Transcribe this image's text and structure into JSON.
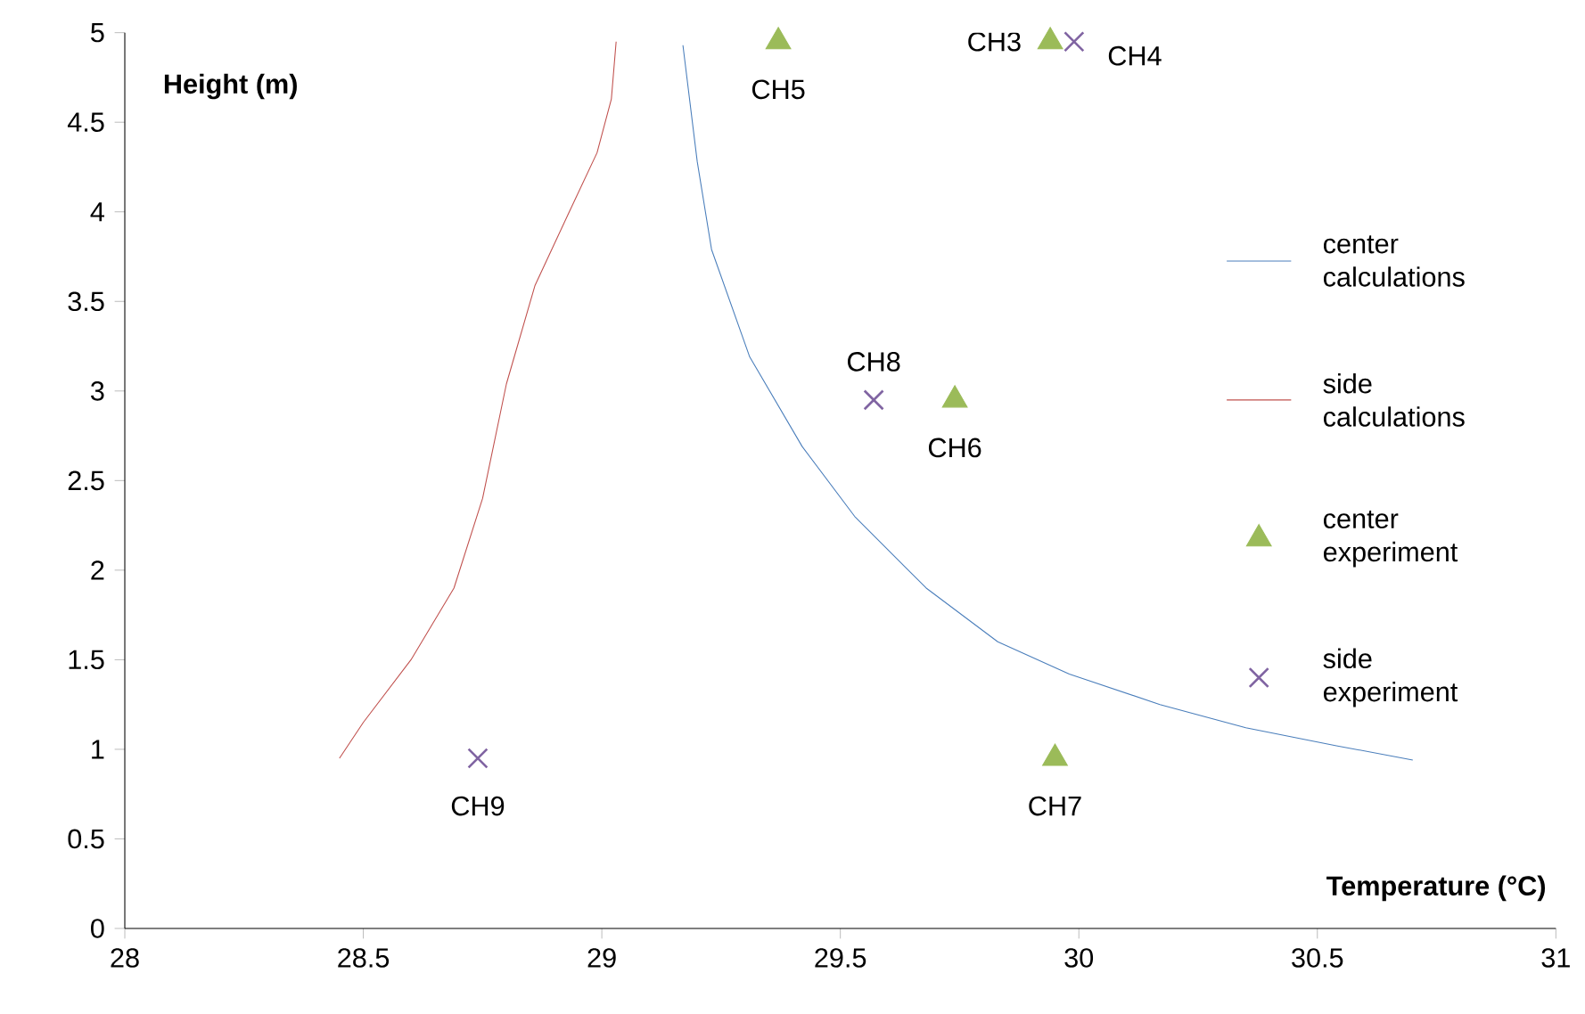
{
  "chart_data": {
    "type": "line",
    "xlabel": "Temperature (°C)",
    "ylabel": "Height (m)",
    "xlim": [
      28,
      31
    ],
    "ylim": [
      0,
      5
    ],
    "xticks": [
      28,
      28.5,
      29,
      29.5,
      30,
      30.5,
      31
    ],
    "yticks": [
      0,
      0.5,
      1,
      1.5,
      2,
      2.5,
      3,
      3.5,
      4,
      4.5,
      5
    ],
    "legend": "right",
    "series": [
      {
        "name": "center calculations",
        "type": "line",
        "marker": "none",
        "color": "#4a7ebb",
        "x": [
          29.17,
          29.2,
          29.23,
          29.31,
          29.42,
          29.53,
          29.68,
          29.83,
          29.98,
          30.17,
          30.35,
          30.54,
          30.7
        ],
        "values": [
          4.93,
          4.28,
          3.79,
          3.19,
          2.69,
          2.3,
          1.9,
          1.6,
          1.42,
          1.25,
          1.12,
          1.02,
          0.94
        ]
      },
      {
        "name": "side calculations",
        "type": "line",
        "marker": "none",
        "color": "#c0504d",
        "x": [
          28.45,
          28.5,
          28.6,
          28.69,
          28.75,
          28.8,
          28.86,
          28.93,
          28.99,
          29.02,
          29.03
        ],
        "values": [
          0.95,
          1.15,
          1.5,
          1.9,
          2.4,
          3.04,
          3.59,
          3.99,
          4.33,
          4.63,
          4.95
        ]
      },
      {
        "name": "center experiment",
        "type": "scatter",
        "marker": "triangle",
        "color": "#9bbb59",
        "x": [
          29.37,
          29.94,
          29.74,
          29.95
        ],
        "values": [
          4.95,
          4.95,
          2.95,
          0.95
        ]
      },
      {
        "name": "side experiment",
        "type": "scatter",
        "marker": "cross",
        "color": "#8064a2",
        "x": [
          29.99,
          29.57,
          28.74
        ],
        "values": [
          4.95,
          2.95,
          0.95
        ]
      }
    ],
    "annotations": [
      {
        "text": "CH3",
        "x": 29.94,
        "y": 4.95
      },
      {
        "text": "CH4",
        "x": 29.99,
        "y": 4.95
      },
      {
        "text": "CH5",
        "x": 29.37,
        "y": 4.95
      },
      {
        "text": "CH8",
        "x": 29.57,
        "y": 2.95
      },
      {
        "text": "CH6",
        "x": 29.74,
        "y": 2.95
      },
      {
        "text": "CH7",
        "x": 29.95,
        "y": 0.95
      },
      {
        "text": "CH9",
        "x": 28.74,
        "y": 0.95
      }
    ]
  }
}
